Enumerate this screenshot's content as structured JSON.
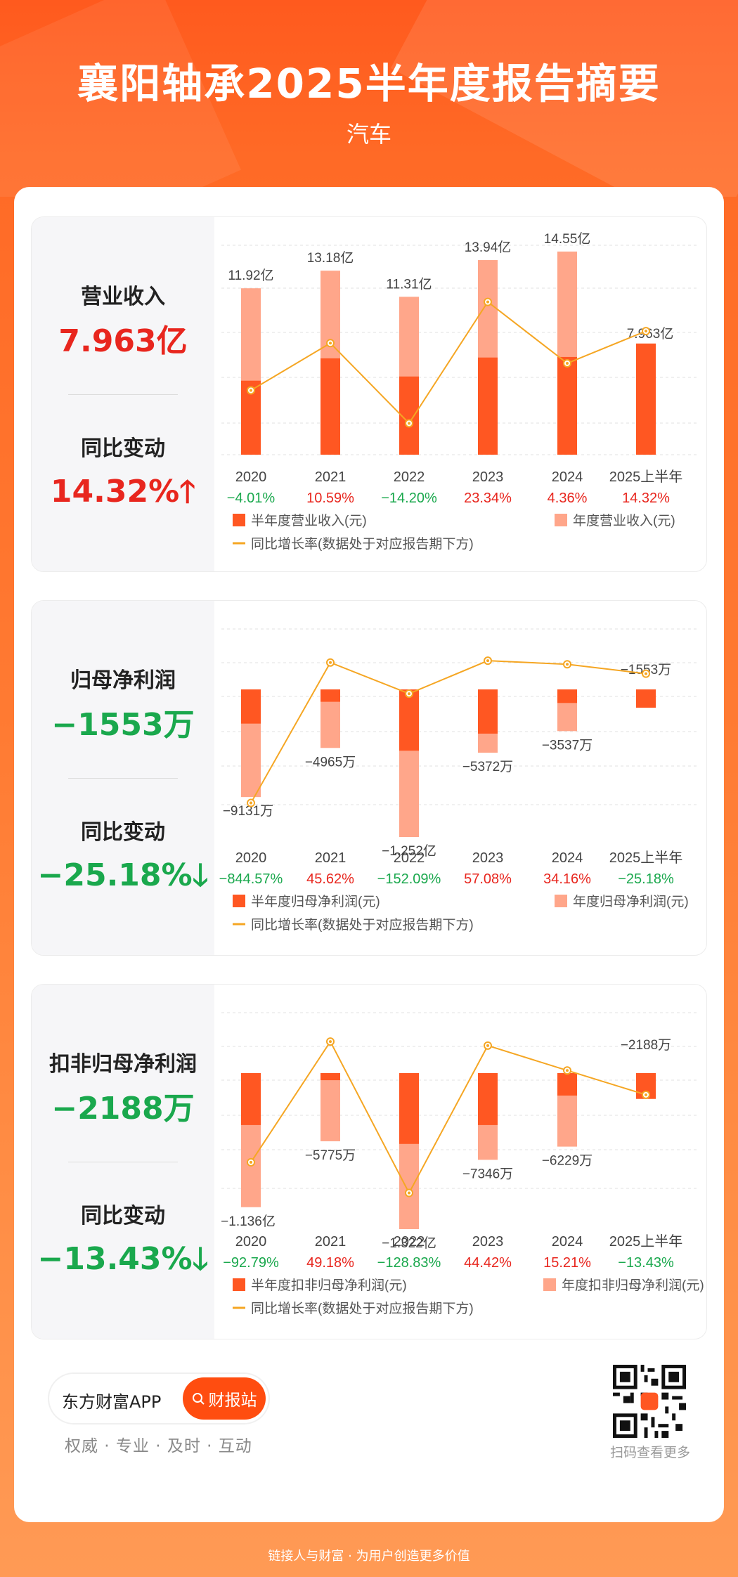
{
  "header": {
    "title": "襄阳轴承2025半年度报告摘要",
    "subtitle": "汽车"
  },
  "colors": {
    "half": "#ff5722",
    "annual": "#ffa68a",
    "line": "#f5a623",
    "up": "#e8261e",
    "down": "#1aa84d"
  },
  "panels": [
    {
      "metric_label": "营业收入",
      "metric_value": "7.963亿",
      "change_label": "同比变动",
      "change_value": "14.32%",
      "change_dir": "up",
      "legend_half": "半年度营业收入(元)",
      "legend_annual": "年度营业收入(元)",
      "legend_line": "同比增长率(数据处于对应报告期下方)"
    },
    {
      "metric_label": "归母净利润",
      "metric_value": "−1553万",
      "change_label": "同比变动",
      "change_value": "−25.18%",
      "change_dir": "down",
      "legend_half": "半年度归母净利润(元)",
      "legend_annual": "年度归母净利润(元)",
      "legend_line": "同比增长率(数据处于对应报告期下方)"
    },
    {
      "metric_label": "扣非归母净利润",
      "metric_value": "−2188万",
      "change_label": "同比变动",
      "change_value": "−13.43%",
      "change_dir": "down",
      "legend_half": "半年度扣非归母净利润(元)",
      "legend_annual": "年度扣非归母净利润(元)",
      "legend_line": "同比增长率(数据处于对应报告期下方)"
    }
  ],
  "chart_data": [
    {
      "type": "bar",
      "categories": [
        "2020",
        "2021",
        "2022",
        "2023",
        "2024",
        "2025上半年"
      ],
      "series": [
        {
          "name": "半年度营业收入(元)",
          "values": [
            5.3,
            6.9,
            5.6,
            6.96,
            7.0,
            7.963
          ]
        },
        {
          "name": "年度营业收入(元)",
          "values": [
            11.92,
            13.18,
            11.31,
            13.94,
            14.55,
            null
          ]
        },
        {
          "name": "同比增长率(数据处于对应报告期下方)",
          "values": [
            -4.01,
            10.59,
            -14.2,
            23.34,
            4.36,
            14.32
          ]
        }
      ],
      "value_labels": [
        "11.92亿",
        "13.18亿",
        "11.31亿",
        "13.94亿",
        "14.55亿",
        "7.963亿"
      ],
      "rate_labels": [
        "−4.01%",
        "10.59%",
        "−14.20%",
        "23.34%",
        "4.36%",
        "14.32%"
      ]
    },
    {
      "type": "bar",
      "categories": [
        "2020",
        "2021",
        "2022",
        "2023",
        "2024",
        "2025上半年"
      ],
      "series": [
        {
          "name": "半年度归母净利润(元)",
          "values": [
            -2900,
            -1050,
            -5200,
            -3750,
            -1150,
            -1553
          ]
        },
        {
          "name": "年度归母净利润(元)",
          "values": [
            -9131,
            -4965,
            -12520,
            -5372,
            -3537,
            null
          ]
        },
        {
          "name": "同比增长率(数据处于对应报告期下方)",
          "values": [
            -844.57,
            45.62,
            -152.09,
            57.08,
            34.16,
            -25.18
          ]
        }
      ],
      "value_labels": [
        "−9131万",
        "−4965万",
        "−1.252亿",
        "−5372万",
        "−3537万",
        "−1553万"
      ],
      "rate_labels": [
        "−844.57%",
        "45.62%",
        "−152.09%",
        "57.08%",
        "34.16%",
        "−25.18%"
      ]
    },
    {
      "type": "bar",
      "categories": [
        "2020",
        "2021",
        "2022",
        "2023",
        "2024",
        "2025上半年"
      ],
      "series": [
        {
          "name": "半年度扣非归母净利润(元)",
          "values": [
            -4400,
            -600,
            -6000,
            -4400,
            -1900,
            -2188
          ]
        },
        {
          "name": "年度扣非归母净利润(元)",
          "values": [
            -11360,
            -5775,
            -13220,
            -7346,
            -6229,
            null
          ]
        },
        {
          "name": "同比增长率(数据处于对应报告期下方)",
          "values": [
            -92.79,
            49.18,
            -128.83,
            44.42,
            15.21,
            -13.43
          ]
        }
      ],
      "value_labels": [
        "−1.136亿",
        "−5775万",
        "−1.322亿",
        "−7346万",
        "−6229万",
        "−2188万"
      ],
      "rate_labels": [
        "−92.79%",
        "49.18%",
        "−128.83%",
        "44.42%",
        "15.21%",
        "−13.43%"
      ]
    }
  ],
  "footer": {
    "app_name": "东方财富APP",
    "button_label": "财报站",
    "tagline": "权威 · 专业 · 及时 · 互动",
    "qr_label": "扫码查看更多",
    "slogan": "链接人与财富 · 为用户创造更多价值"
  }
}
